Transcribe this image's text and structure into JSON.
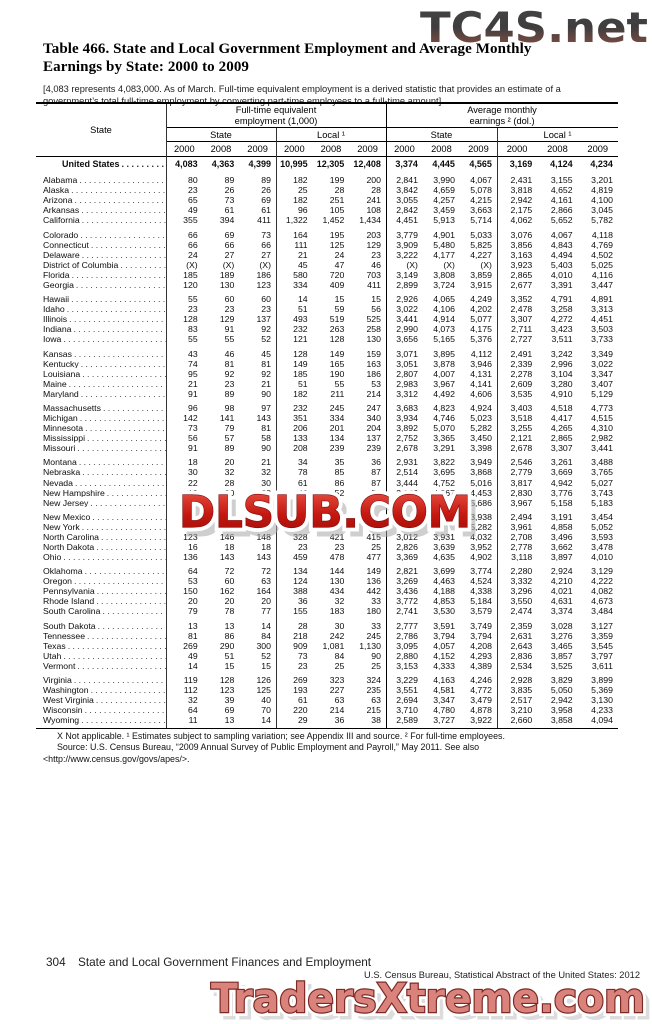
{
  "watermarks": {
    "top": "TC4S.net",
    "middle": "DLSUB.COM",
    "bottom": "TradersXtreme.com"
  },
  "title": "Table 466. State and Local Government Employment and Average Monthly Earnings by State: 2000 to 2009",
  "bracket_note": "[4,083 represents 4,083,000. As of March. Full-time equivalent employment is a derived statistic that provides an estimate of a government’s total full-time employment by converting part-time employees to a full-time amount]",
  "table": {
    "corner_label": "State",
    "group_headers": [
      {
        "line1": "Full-time equivalent",
        "line2": "employment (1,000)"
      },
      {
        "line1": "Average monthly",
        "line2": "earnings ² (dol.)"
      }
    ],
    "subheaders": [
      "State",
      "Local ¹",
      "State",
      "Local ¹"
    ],
    "years": [
      "2000",
      "2008",
      "2009"
    ],
    "us_row": {
      "label": "United States",
      "values": [
        "4,083",
        "4,363",
        "4,399",
        "10,995",
        "12,305",
        "12,408",
        "3,374",
        "4,445",
        "4,565",
        "3,169",
        "4,124",
        "4,234"
      ]
    },
    "groups": [
      [
        {
          "label": "Alabama",
          "values": [
            "80",
            "89",
            "89",
            "182",
            "199",
            "200",
            "2,841",
            "3,990",
            "4,067",
            "2,431",
            "3,155",
            "3,201"
          ]
        },
        {
          "label": "Alaska",
          "values": [
            "23",
            "26",
            "26",
            "25",
            "28",
            "28",
            "3,842",
            "4,659",
            "5,078",
            "3,818",
            "4,652",
            "4,819"
          ]
        },
        {
          "label": "Arizona",
          "values": [
            "65",
            "73",
            "69",
            "182",
            "251",
            "241",
            "3,055",
            "4,257",
            "4,215",
            "2,942",
            "4,161",
            "4,100"
          ]
        },
        {
          "label": "Arkansas",
          "values": [
            "49",
            "61",
            "61",
            "96",
            "105",
            "108",
            "2,842",
            "3,459",
            "3,663",
            "2,175",
            "2,866",
            "3,045"
          ]
        },
        {
          "label": "California",
          "values": [
            "355",
            "394",
            "411",
            "1,322",
            "1,452",
            "1,434",
            "4,451",
            "5,913",
            "5,714",
            "4,062",
            "5,652",
            "5,782"
          ]
        }
      ],
      [
        {
          "label": "Colorado",
          "values": [
            "66",
            "69",
            "73",
            "164",
            "195",
            "203",
            "3,779",
            "4,901",
            "5,033",
            "3,076",
            "4,067",
            "4,118"
          ]
        },
        {
          "label": "Connecticut",
          "values": [
            "66",
            "66",
            "66",
            "111",
            "125",
            "129",
            "3,909",
            "5,480",
            "5,825",
            "3,856",
            "4,843",
            "4,769"
          ]
        },
        {
          "label": "Delaware",
          "values": [
            "24",
            "27",
            "27",
            "21",
            "24",
            "23",
            "3,222",
            "4,177",
            "4,227",
            "3,163",
            "4,494",
            "4,502"
          ]
        },
        {
          "label": "District of Columbia",
          "values": [
            "(X)",
            "(X)",
            "(X)",
            "45",
            "47",
            "46",
            "(X)",
            "(X)",
            "(X)",
            "3,923",
            "5,403",
            "5,025"
          ]
        },
        {
          "label": "Florida",
          "values": [
            "185",
            "189",
            "186",
            "580",
            "720",
            "703",
            "3,149",
            "3,808",
            "3,859",
            "2,865",
            "4,010",
            "4,116"
          ]
        },
        {
          "label": "Georgia",
          "values": [
            "120",
            "130",
            "123",
            "334",
            "409",
            "411",
            "2,899",
            "3,724",
            "3,915",
            "2,677",
            "3,391",
            "3,447"
          ]
        }
      ],
      [
        {
          "label": "Hawaii",
          "values": [
            "55",
            "60",
            "60",
            "14",
            "15",
            "15",
            "2,926",
            "4,065",
            "4,249",
            "3,352",
            "4,791",
            "4,891"
          ]
        },
        {
          "label": "Idaho",
          "values": [
            "23",
            "23",
            "23",
            "51",
            "59",
            "56",
            "3,022",
            "4,106",
            "4,202",
            "2,478",
            "3,258",
            "3,313"
          ]
        },
        {
          "label": "Illinois",
          "values": [
            "128",
            "129",
            "137",
            "493",
            "519",
            "525",
            "3,441",
            "4,914",
            "5,077",
            "3,307",
            "4,272",
            "4,451"
          ]
        },
        {
          "label": "Indiana",
          "values": [
            "83",
            "91",
            "92",
            "232",
            "263",
            "258",
            "2,990",
            "4,073",
            "4,175",
            "2,711",
            "3,423",
            "3,503"
          ]
        },
        {
          "label": "Iowa",
          "values": [
            "55",
            "55",
            "52",
            "121",
            "128",
            "130",
            "3,656",
            "5,165",
            "5,376",
            "2,727",
            "3,511",
            "3,733"
          ]
        }
      ],
      [
        {
          "label": "Kansas",
          "values": [
            "43",
            "46",
            "45",
            "128",
            "149",
            "159",
            "3,071",
            "3,895",
            "4,112",
            "2,491",
            "3,242",
            "3,349"
          ]
        },
        {
          "label": "Kentucky",
          "values": [
            "74",
            "81",
            "81",
            "149",
            "165",
            "163",
            "3,051",
            "3,878",
            "3,946",
            "2,339",
            "2,996",
            "3,022"
          ]
        },
        {
          "label": "Louisiana",
          "values": [
            "95",
            "92",
            "92",
            "185",
            "190",
            "186",
            "2,807",
            "4,007",
            "4,131",
            "2,278",
            "3,104",
            "3,347"
          ]
        },
        {
          "label": "Maine",
          "values": [
            "21",
            "23",
            "21",
            "51",
            "55",
            "53",
            "2,983",
            "3,967",
            "4,141",
            "2,609",
            "3,280",
            "3,407"
          ]
        },
        {
          "label": "Maryland",
          "values": [
            "91",
            "89",
            "90",
            "182",
            "211",
            "214",
            "3,312",
            "4,492",
            "4,606",
            "3,535",
            "4,910",
            "5,129"
          ]
        }
      ],
      [
        {
          "label": "Massachusetts",
          "values": [
            "96",
            "98",
            "97",
            "232",
            "245",
            "247",
            "3,683",
            "4,823",
            "4,924",
            "3,403",
            "4,518",
            "4,773"
          ]
        },
        {
          "label": "Michigan",
          "values": [
            "142",
            "141",
            "143",
            "351",
            "334",
            "340",
            "3,934",
            "4,746",
            "5,023",
            "3,518",
            "4,417",
            "4,515"
          ]
        },
        {
          "label": "Minnesota",
          "values": [
            "73",
            "79",
            "81",
            "206",
            "201",
            "204",
            "3,892",
            "5,070",
            "5,282",
            "3,255",
            "4,265",
            "4,310"
          ]
        },
        {
          "label": "Mississippi",
          "values": [
            "56",
            "57",
            "58",
            "133",
            "134",
            "137",
            "2,752",
            "3,365",
            "3,450",
            "2,121",
            "2,865",
            "2,982"
          ]
        },
        {
          "label": "Missouri",
          "values": [
            "91",
            "89",
            "90",
            "208",
            "239",
            "239",
            "2,678",
            "3,291",
            "3,398",
            "2,678",
            "3,307",
            "3,441"
          ]
        }
      ],
      [
        {
          "label": "Montana",
          "values": [
            "18",
            "20",
            "21",
            "34",
            "35",
            "36",
            "2,931",
            "3,822",
            "3,949",
            "2,546",
            "3,261",
            "3,488"
          ]
        },
        {
          "label": "Nebraska",
          "values": [
            "30",
            "32",
            "32",
            "78",
            "85",
            "87",
            "2,514",
            "3,695",
            "3,868",
            "2,779",
            "3,669",
            "3,765"
          ]
        },
        {
          "label": "Nevada",
          "values": [
            "22",
            "28",
            "30",
            "61",
            "86",
            "87",
            "3,444",
            "4,752",
            "5,016",
            "3,817",
            "4,942",
            "5,027"
          ]
        },
        {
          "label": "New Hampshire",
          "values": [
            "19",
            "20",
            "20",
            "46",
            "52",
            "54",
            "3,079",
            "4,367",
            "4,453",
            "2,830",
            "3,776",
            "3,743"
          ]
        },
        {
          "label": "New Jersey",
          "values": [
            "",
            "",
            "",
            "",
            "",
            "",
            "",
            "",
            "5,686",
            "3,967",
            "5,158",
            "5,183"
          ]
        }
      ],
      [
        {
          "label": "New Mexico",
          "values": [
            "",
            "",
            "",
            "",
            "",
            "",
            "",
            "",
            "3,938",
            "2,494",
            "3,191",
            "3,454"
          ]
        },
        {
          "label": "New York",
          "values": [
            "",
            "",
            "",
            "",
            "",
            "",
            "",
            "",
            "5,282",
            "3,961",
            "4,858",
            "5,052"
          ]
        },
        {
          "label": "North Carolina",
          "values": [
            "123",
            "146",
            "148",
            "328",
            "421",
            "415",
            "3,012",
            "3,931",
            "4,032",
            "2,708",
            "3,496",
            "3,593"
          ]
        },
        {
          "label": "North Dakota",
          "values": [
            "16",
            "18",
            "18",
            "23",
            "23",
            "25",
            "2,826",
            "3,639",
            "3,952",
            "2,778",
            "3,662",
            "3,478"
          ]
        },
        {
          "label": "Ohio",
          "values": [
            "136",
            "143",
            "143",
            "459",
            "478",
            "477",
            "3,369",
            "4,635",
            "4,902",
            "3,118",
            "3,897",
            "4,010"
          ]
        }
      ],
      [
        {
          "label": "Oklahoma",
          "values": [
            "64",
            "72",
            "72",
            "134",
            "144",
            "149",
            "2,821",
            "3,699",
            "3,774",
            "2,280",
            "2,924",
            "3,129"
          ]
        },
        {
          "label": "Oregon",
          "values": [
            "53",
            "60",
            "63",
            "124",
            "130",
            "136",
            "3,269",
            "4,463",
            "4,524",
            "3,332",
            "4,210",
            "4,222"
          ]
        },
        {
          "label": "Pennsylvania",
          "values": [
            "150",
            "162",
            "164",
            "388",
            "434",
            "442",
            "3,436",
            "4,188",
            "4,338",
            "3,296",
            "4,021",
            "4,082"
          ]
        },
        {
          "label": "Rhode Island",
          "values": [
            "20",
            "20",
            "20",
            "36",
            "32",
            "33",
            "3,772",
            "4,853",
            "5,184",
            "3,550",
            "4,631",
            "4,673"
          ]
        },
        {
          "label": "South Carolina",
          "values": [
            "79",
            "78",
            "77",
            "155",
            "183",
            "180",
            "2,741",
            "3,530",
            "3,579",
            "2,474",
            "3,374",
            "3,484"
          ]
        }
      ],
      [
        {
          "label": "South Dakota",
          "values": [
            "13",
            "13",
            "14",
            "28",
            "30",
            "33",
            "2,777",
            "3,591",
            "3,749",
            "2,359",
            "3,028",
            "3,127"
          ]
        },
        {
          "label": "Tennessee",
          "values": [
            "81",
            "86",
            "84",
            "218",
            "242",
            "245",
            "2,786",
            "3,794",
            "3,794",
            "2,631",
            "3,276",
            "3,359"
          ]
        },
        {
          "label": "Texas",
          "values": [
            "269",
            "290",
            "300",
            "909",
            "1,081",
            "1,130",
            "3,095",
            "4,057",
            "4,208",
            "2,643",
            "3,465",
            "3,545"
          ]
        },
        {
          "label": "Utah",
          "values": [
            "49",
            "51",
            "52",
            "73",
            "84",
            "90",
            "2,880",
            "4,152",
            "4,293",
            "2,836",
            "3,857",
            "3,797"
          ]
        },
        {
          "label": "Vermont",
          "values": [
            "14",
            "15",
            "15",
            "23",
            "25",
            "25",
            "3,153",
            "4,333",
            "4,389",
            "2,534",
            "3,525",
            "3,611"
          ]
        }
      ],
      [
        {
          "label": "Virginia",
          "values": [
            "119",
            "128",
            "126",
            "269",
            "323",
            "324",
            "3,229",
            "4,163",
            "4,246",
            "2,928",
            "3,829",
            "3,899"
          ]
        },
        {
          "label": "Washington",
          "values": [
            "112",
            "123",
            "125",
            "193",
            "227",
            "235",
            "3,551",
            "4,581",
            "4,772",
            "3,835",
            "5,050",
            "5,369"
          ]
        },
        {
          "label": "West Virginia",
          "values": [
            "32",
            "39",
            "40",
            "61",
            "63",
            "63",
            "2,694",
            "3,347",
            "3,479",
            "2,517",
            "2,942",
            "3,130"
          ]
        },
        {
          "label": "Wisconsin",
          "values": [
            "64",
            "69",
            "70",
            "220",
            "214",
            "215",
            "3,710",
            "4,780",
            "4,878",
            "3,210",
            "3,958",
            "4,233"
          ]
        },
        {
          "label": "Wyoming",
          "values": [
            "11",
            "13",
            "14",
            "29",
            "36",
            "38",
            "2,589",
            "3,727",
            "3,922",
            "2,660",
            "3,858",
            "4,094"
          ]
        }
      ]
    ]
  },
  "footnotes": {
    "line1": "X Not applicable. ¹ Estimates subject to sampling variation; see Appendix III and source. ² For full-time employees.",
    "line2": "Source: U.S. Census Bureau, “2009 Annual Survey of Public Employment and Payroll,” May 2011. See also <http://www.census.gov/govs/apes/>."
  },
  "page_footer": {
    "page_number": "304",
    "section_title": "State and Local Government Finances and Employment",
    "attribution": "U.S. Census Bureau, Statistical Abstract of the United States: 2012"
  }
}
